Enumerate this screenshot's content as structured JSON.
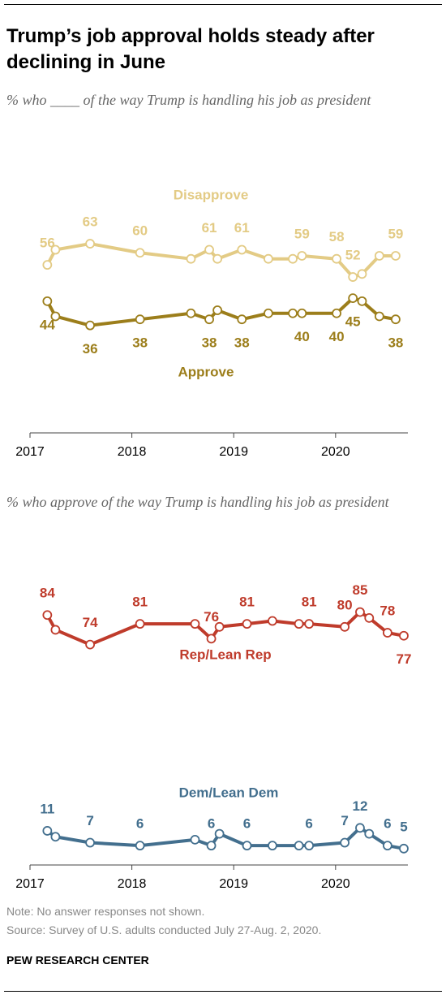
{
  "title": "Trump’s job approval holds steady after declining in June",
  "chart_data": [
    {
      "type": "line",
      "subtitle": "% who ____ of the way Trump is handling his job as president",
      "x": [
        2017.17,
        2017.25,
        2017.59,
        2018.08,
        2018.58,
        2018.76,
        2018.84,
        2019.08,
        2019.34,
        2019.58,
        2019.67,
        2020.01,
        2020.17,
        2020.26,
        2020.43,
        2020.59
      ],
      "xlim": [
        2017,
        2020.71
      ],
      "xticks": [
        2017,
        2018,
        2019,
        2020
      ],
      "ylim": [
        30,
        70
      ],
      "series": [
        {
          "name": "Disapprove",
          "color": "#e3cb85",
          "values": [
            56,
            61,
            63,
            60,
            58,
            61,
            58,
            61,
            58,
            58,
            59,
            58,
            52,
            53,
            59,
            59
          ],
          "value_labels": [
            "56",
            null,
            "63",
            "60",
            null,
            "61",
            null,
            "61",
            null,
            null,
            "59",
            "58",
            "52",
            null,
            null,
            "59"
          ]
        },
        {
          "name": "Approve",
          "color": "#9c7e1b",
          "values": [
            44,
            39,
            36,
            38,
            40,
            38,
            41,
            38,
            40,
            40,
            40,
            40,
            45,
            44,
            39,
            38
          ],
          "value_labels": [
            "44",
            null,
            "36",
            "38",
            null,
            "38",
            null,
            "38",
            null,
            null,
            "40",
            "40",
            "45",
            null,
            null,
            "38"
          ]
        }
      ]
    },
    {
      "type": "line",
      "subtitle": "% who approve of the way Trump is handling his job as president",
      "x": [
        2017.17,
        2017.25,
        2017.59,
        2018.08,
        2018.62,
        2018.78,
        2018.86,
        2019.13,
        2019.38,
        2019.64,
        2019.74,
        2020.09,
        2020.24,
        2020.33,
        2020.51,
        2020.67
      ],
      "xlim": [
        2017,
        2020.71
      ],
      "xticks": [
        2017,
        2018,
        2019,
        2020
      ],
      "ylim": [
        0,
        100
      ],
      "series": [
        {
          "name": "Rep/Lean Rep",
          "color": "#bf3b2b",
          "values": [
            84,
            79,
            74,
            81,
            81,
            76,
            80,
            81,
            82,
            81,
            81,
            80,
            85,
            83,
            78,
            77
          ],
          "value_labels": [
            "84",
            null,
            "74",
            "81",
            null,
            "76",
            null,
            "81",
            null,
            null,
            "81",
            "80",
            "85",
            null,
            "78",
            "77"
          ]
        },
        {
          "name": "Dem/Lean Dem",
          "color": "#436f8e",
          "values": [
            11,
            9,
            7,
            6,
            8,
            6,
            10,
            6,
            6,
            6,
            6,
            7,
            12,
            10,
            6,
            5
          ],
          "value_labels": [
            "11",
            null,
            "7",
            "6",
            null,
            "6",
            null,
            "6",
            null,
            null,
            "6",
            "7",
            "12",
            null,
            "6",
            "5"
          ]
        }
      ]
    }
  ],
  "footer": {
    "note": "Note: No answer responses not shown.",
    "source": "Source: Survey of U.S. adults conducted July 27-Aug. 2, 2020.",
    "org": "PEW RESEARCH CENTER"
  }
}
